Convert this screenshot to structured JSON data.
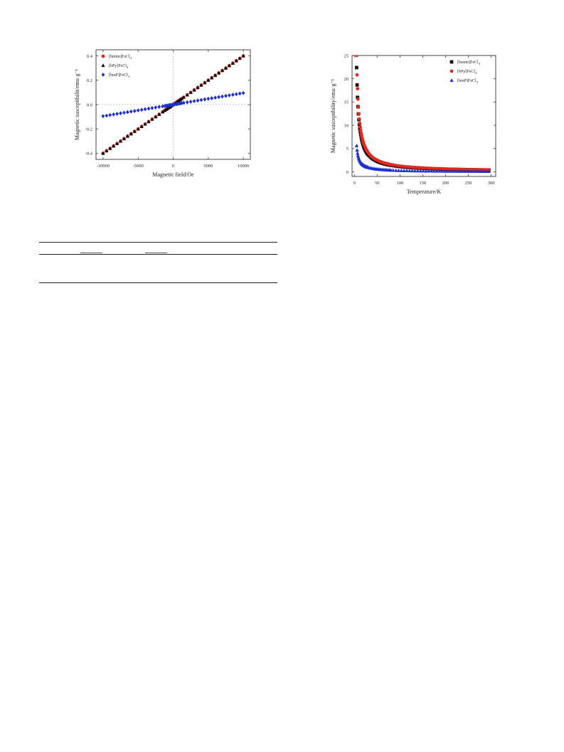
{
  "charts": [
    {
      "type": "scatter",
      "xlabel": "Magnetic field/Oe",
      "ylabel": "Magnetic susceptibilit/emu·g⁻¹",
      "xlim": [
        -11000,
        11000
      ],
      "ylim": [
        -0.45,
        0.45
      ],
      "xticks": [
        -10000,
        -5000,
        0,
        5000,
        10000
      ],
      "yticks": [
        -0.4,
        -0.2,
        0.0,
        0.2,
        0.4
      ],
      "xtick_labels": [
        "-10000",
        "-5000",
        "0",
        "5000",
        "10000"
      ],
      "ytick_labels": [
        "-0.4",
        "-0.2",
        "0.0",
        "0.2",
        "0.4"
      ],
      "zero_lines": true,
      "legend_position": "top-left",
      "series": [
        {
          "name": "[bmim]FeCl",
          "subscript": "4",
          "marker": "circle",
          "color": "#e8281f",
          "x_range": [
            -10000,
            10000
          ],
          "points": 41,
          "slope": 4e-05,
          "power": 1.0
        },
        {
          "name": "[bPy]FeCl",
          "subscript": "4",
          "marker": "triangle",
          "color": "#111111",
          "x_range": [
            -10000,
            10000
          ],
          "points": 41,
          "slope": 4e-05,
          "power": 1.0
        },
        {
          "name": "[bmP]FeCl",
          "subscript": "4",
          "marker": "diamond",
          "color": "#1f2fd6",
          "x_range": [
            -10000,
            10000
          ],
          "points": 41,
          "slope": 9.5e-06,
          "power": 1.0
        }
      ]
    },
    {
      "type": "scatter",
      "xlabel": "Temperature/K",
      "ylabel": "Magnetic susceptibility/emu·g⁻¹",
      "xlim": [
        -5,
        310
      ],
      "ylim": [
        -1,
        25
      ],
      "xticks": [
        0,
        50,
        100,
        150,
        200,
        250,
        300
      ],
      "yticks": [
        0,
        5,
        10,
        15,
        20,
        25
      ],
      "xtick_labels": [
        "0",
        "50",
        "100",
        "150",
        "200",
        "250",
        "300"
      ],
      "ytick_labels": [
        "0",
        "5",
        "10",
        "15",
        "20",
        "25"
      ],
      "legend_position": "top-right",
      "series": [
        {
          "name": "[bmim]FeCl",
          "subscript": "4",
          "marker": "square",
          "color": "#111111",
          "curie_c": 112,
          "offset": 0.0,
          "t_start": 5,
          "t_end": 300
        },
        {
          "name": "[bPy]FeCl",
          "subscript": "4",
          "marker": "circle",
          "color": "#e8281f",
          "curie_c": 125,
          "offset": 0.0,
          "t_start": 5,
          "t_end": 300
        },
        {
          "name": "[bmP]FeCl",
          "subscript": "4",
          "marker": "triangle",
          "color": "#1f2fd6",
          "curie_c": 28,
          "offset": 0.0,
          "t_start": 5,
          "t_end": 300
        }
      ]
    }
  ],
  "colors": {
    "axis": "#333333",
    "zero_line": "#bfbfbf"
  }
}
